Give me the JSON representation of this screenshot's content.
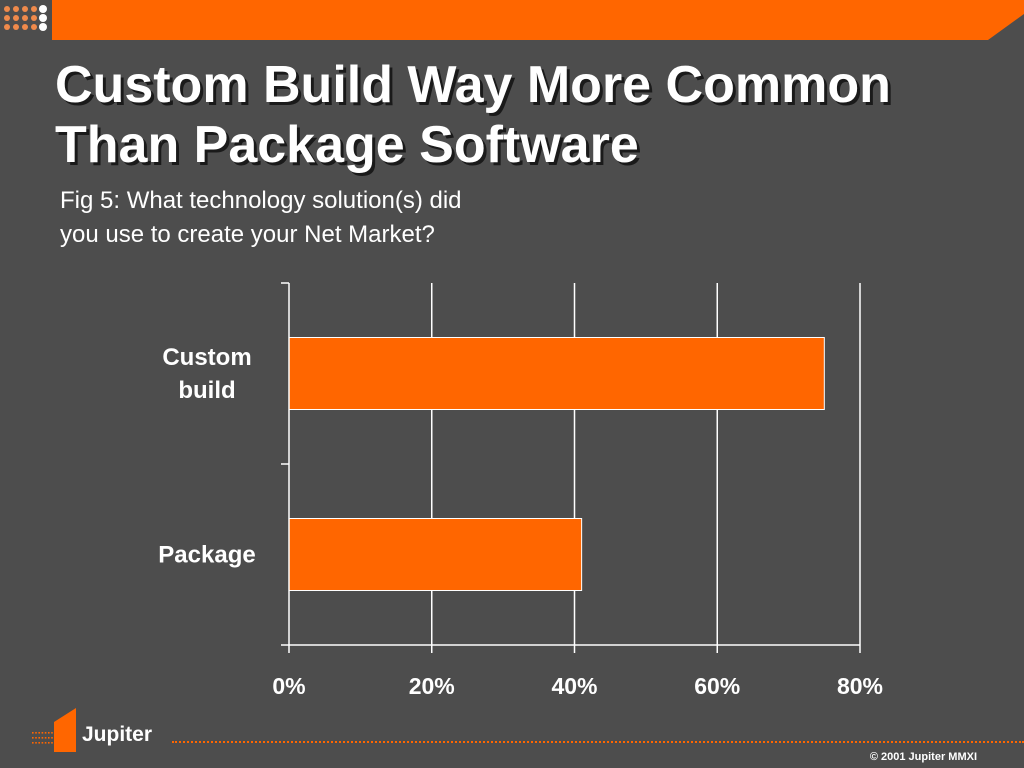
{
  "slide": {
    "title_lines": [
      "Custom Build Way More Common",
      "Than Package Software"
    ],
    "caption_lines": [
      "Fig 5: What technology solution(s) did",
      "you use to create your Net Market?"
    ],
    "brand": "Jupiter",
    "copyright": "© 2001 Jupiter MMXI",
    "colors": {
      "background": "#4d4d4d",
      "accent": "#ff6600",
      "text": "#ffffff"
    }
  },
  "chart_data": {
    "type": "bar",
    "orientation": "horizontal",
    "categories": [
      "Custom\nbuild",
      "Package"
    ],
    "values": [
      75,
      41
    ],
    "xlim": [
      0,
      80
    ],
    "x_ticks": [
      0,
      20,
      40,
      60,
      80
    ],
    "tick_format": "{v}%",
    "grid": true,
    "bar_color": "#ff6600"
  }
}
